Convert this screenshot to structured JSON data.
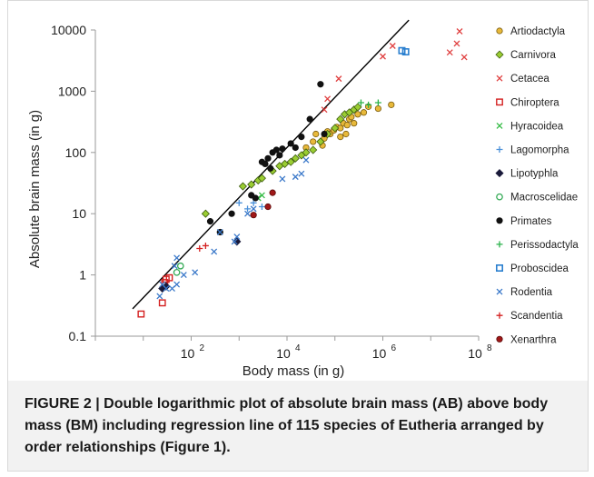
{
  "figure": {
    "caption": "FIGURE 2 | Double logarithmic plot of absolute brain mass (AB) above body mass (BM) including regression line of 115 species of Eutheria arranged by order relationships (Figure 1)."
  },
  "chart_data": {
    "type": "scatter",
    "title": "",
    "xlabel": "Body mass (in g)",
    "ylabel": "Absolute brain mass (in g)",
    "xscale": "log",
    "yscale": "log",
    "xlim": [
      1,
      100000000
    ],
    "ylim": [
      0.1,
      10000
    ],
    "x_ticks": [
      {
        "value": 100,
        "base": "10",
        "exp": "2"
      },
      {
        "value": 10000,
        "base": "10",
        "exp": "4"
      },
      {
        "value": 1000000,
        "base": "10",
        "exp": "6"
      },
      {
        "value": 100000000,
        "base": "10",
        "exp": "8"
      }
    ],
    "y_ticks": [
      {
        "value": 0.1,
        "label": "0.1"
      },
      {
        "value": 1,
        "label": "1"
      },
      {
        "value": 10,
        "label": "10"
      },
      {
        "value": 100,
        "label": "100"
      },
      {
        "value": 1000,
        "label": "1000"
      },
      {
        "value": 10000,
        "label": "10000"
      }
    ],
    "grid": false,
    "legend_position": "right",
    "regression_line": {
      "x": [
        6,
        3500000
      ],
      "y": [
        0.28,
        14500
      ]
    },
    "series": [
      {
        "name": "Artiodactyla",
        "marker": "circle",
        "color": "#e8b93a",
        "stroke": "#7a5c10",
        "points": [
          [
            25000,
            120
          ],
          [
            35000,
            150
          ],
          [
            40000,
            200
          ],
          [
            55000,
            130
          ],
          [
            60000,
            170
          ],
          [
            70000,
            220
          ],
          [
            80000,
            200
          ],
          [
            95000,
            230
          ],
          [
            110000,
            260
          ],
          [
            130000,
            250
          ],
          [
            150000,
            300
          ],
          [
            180000,
            280
          ],
          [
            200000,
            350
          ],
          [
            220000,
            380
          ],
          [
            250000,
            300
          ],
          [
            300000,
            420
          ],
          [
            400000,
            450
          ],
          [
            500000,
            560
          ],
          [
            800000,
            520
          ],
          [
            1500000,
            600
          ],
          [
            170000,
            200
          ],
          [
            130000,
            180
          ]
        ]
      },
      {
        "name": "Carnivora",
        "marker": "diamond",
        "color": "#9acd32",
        "stroke": "#3d5c10",
        "points": [
          [
            200,
            10
          ],
          [
            1200,
            28
          ],
          [
            1800,
            30
          ],
          [
            2500,
            35
          ],
          [
            3000,
            38
          ],
          [
            5000,
            50
          ],
          [
            7000,
            60
          ],
          [
            9000,
            65
          ],
          [
            12000,
            70
          ],
          [
            15000,
            80
          ],
          [
            20000,
            90
          ],
          [
            25000,
            100
          ],
          [
            35000,
            110
          ],
          [
            50000,
            150
          ],
          [
            70000,
            200
          ],
          [
            100000,
            250
          ],
          [
            130000,
            350
          ],
          [
            160000,
            420
          ],
          [
            200000,
            450
          ],
          [
            250000,
            500
          ],
          [
            300000,
            550
          ]
        ]
      },
      {
        "name": "Cetacea",
        "marker": "x",
        "color": "#e04040",
        "points": [
          [
            60000,
            500
          ],
          [
            70000,
            750
          ],
          [
            120000,
            1600
          ],
          [
            1000000,
            3700
          ],
          [
            1600000,
            5500
          ],
          [
            25000000,
            4300
          ],
          [
            35000000,
            6000
          ],
          [
            40000000,
            9500
          ],
          [
            50000000,
            3600
          ]
        ]
      },
      {
        "name": "Chiroptera",
        "marker": "square",
        "color": "#d42020",
        "points": [
          [
            9,
            0.23
          ],
          [
            25,
            0.35
          ],
          [
            28,
            0.75
          ],
          [
            30,
            0.85
          ],
          [
            35,
            0.9
          ]
        ]
      },
      {
        "name": "Hyracoidea",
        "marker": "x",
        "color": "#33bb44",
        "points": [
          [
            2500,
            18
          ],
          [
            3000,
            20
          ]
        ]
      },
      {
        "name": "Lagomorpha",
        "marker": "plus",
        "color": "#4a90d9",
        "points": [
          [
            1000,
            15
          ],
          [
            1500,
            12
          ],
          [
            2000,
            15
          ],
          [
            3000,
            13
          ]
        ]
      },
      {
        "name": "Lipotyphla",
        "marker": "diamond",
        "color": "#1a1a3a",
        "points": [
          [
            25,
            0.6
          ],
          [
            30,
            0.65
          ],
          [
            900,
            3.5
          ]
        ]
      },
      {
        "name": "Macroscelidae",
        "marker": "circle_open",
        "color": "#33aa55",
        "points": [
          [
            50,
            1.1
          ],
          [
            60,
            1.4
          ]
        ]
      },
      {
        "name": "Primates",
        "marker": "circle",
        "color": "#111111",
        "stroke": "#111111",
        "points": [
          [
            250,
            7.5
          ],
          [
            400,
            5
          ],
          [
            700,
            10
          ],
          [
            1800,
            20
          ],
          [
            2200,
            18
          ],
          [
            3000,
            70
          ],
          [
            3500,
            65
          ],
          [
            4000,
            80
          ],
          [
            4500,
            55
          ],
          [
            5000,
            100
          ],
          [
            6000,
            110
          ],
          [
            7000,
            90
          ],
          [
            8000,
            115
          ],
          [
            12000,
            140
          ],
          [
            15000,
            120
          ],
          [
            20000,
            180
          ],
          [
            30000,
            350
          ],
          [
            50000,
            1300
          ],
          [
            60000,
            200
          ]
        ]
      },
      {
        "name": "Perissodactyla",
        "marker": "plus",
        "color": "#2ab24a",
        "points": [
          [
            500000,
            600
          ],
          [
            800000,
            650
          ],
          [
            350000,
            650
          ]
        ]
      },
      {
        "name": "Proboscidea",
        "marker": "square_open",
        "color": "#2a7fcf",
        "points": [
          [
            2500000,
            4600
          ],
          [
            3000000,
            4400
          ]
        ]
      },
      {
        "name": "Rodentia",
        "marker": "x",
        "color": "#3a78c9",
        "points": [
          [
            22,
            0.45
          ],
          [
            25,
            0.7
          ],
          [
            30,
            0.6
          ],
          [
            40,
            0.6
          ],
          [
            45,
            1.4
          ],
          [
            50,
            0.7
          ],
          [
            50,
            1.9
          ],
          [
            70,
            1.0
          ],
          [
            120,
            1.1
          ],
          [
            300,
            2.4
          ],
          [
            400,
            5
          ],
          [
            800,
            3.5
          ],
          [
            900,
            4.2
          ],
          [
            1500,
            10
          ],
          [
            2000,
            12
          ],
          [
            8000,
            37
          ],
          [
            15000,
            40
          ],
          [
            20000,
            45
          ],
          [
            25000,
            75
          ]
        ]
      },
      {
        "name": "Scandentia",
        "marker": "plus",
        "color": "#d42020",
        "points": [
          [
            150,
            2.7
          ],
          [
            200,
            3
          ]
        ]
      },
      {
        "name": "Xenarthra",
        "marker": "circle",
        "color": "#a01818",
        "stroke": "#5a0a0a",
        "points": [
          [
            2000,
            9.5
          ],
          [
            4000,
            13
          ],
          [
            5000,
            22
          ]
        ]
      }
    ]
  }
}
